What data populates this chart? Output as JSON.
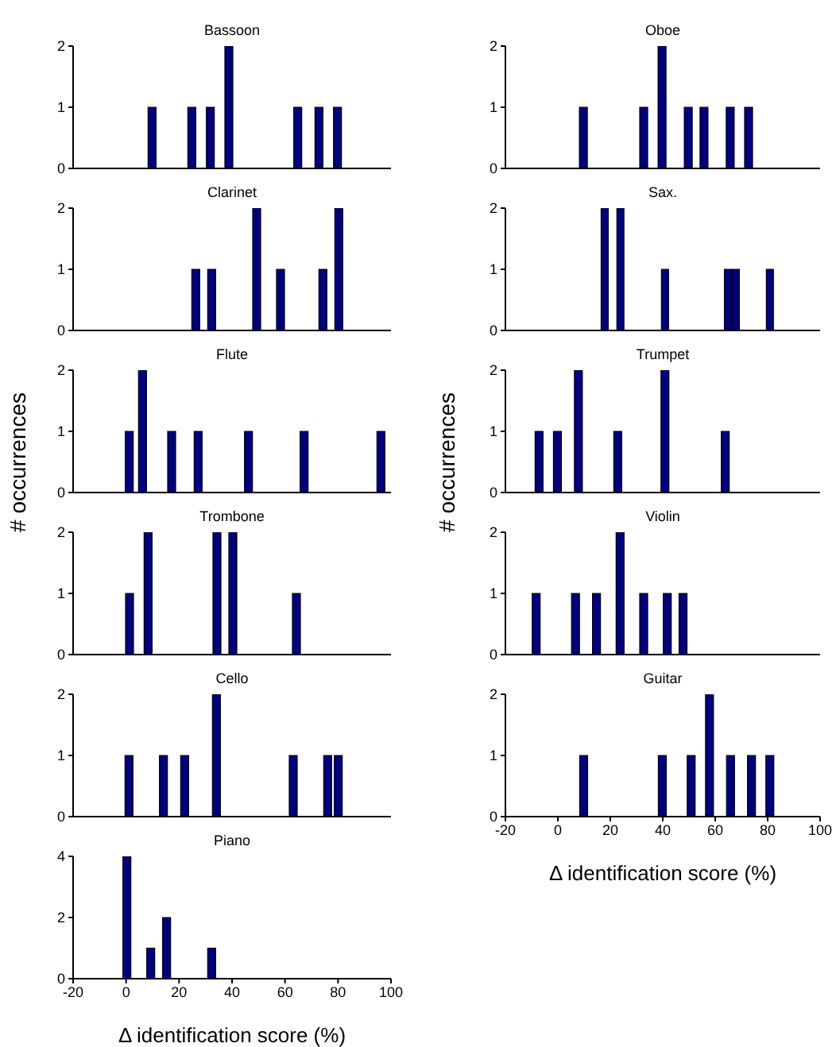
{
  "chart_data": [
    {
      "type": "bar",
      "title": "Bassoon",
      "x": [
        10,
        25,
        32,
        39,
        65,
        73,
        80
      ],
      "values": [
        1,
        1,
        1,
        2,
        1,
        1,
        1
      ],
      "color": "#000080",
      "xlim": [
        -20,
        100
      ],
      "xticks": [
        -20,
        0,
        20,
        40,
        60,
        80,
        100
      ],
      "ylim": [
        0,
        2
      ],
      "yticks": [
        0,
        1,
        2
      ],
      "tick_labels": "y"
    },
    {
      "type": "bar",
      "title": "Clarinet",
      "x": [
        26,
        32,
        49,
        58,
        74,
        80
      ],
      "values": [
        1,
        1,
        2,
        1,
        1,
        2
      ],
      "color": "#000080",
      "xlim": [
        -20,
        100
      ],
      "xticks": [
        -20,
        0,
        20,
        40,
        60,
        80,
        100
      ],
      "ylim": [
        0,
        2
      ],
      "yticks": [
        0,
        1,
        2
      ],
      "tick_labels": "y"
    },
    {
      "type": "bar",
      "title": "Flute",
      "ylabel": "# occurrences",
      "x": [
        1,
        6,
        17,
        27,
        46,
        67,
        96
      ],
      "values": [
        1,
        2,
        1,
        1,
        1,
        1,
        1
      ],
      "color": "#000080",
      "xlim": [
        -20,
        100
      ],
      "xticks": [
        -20,
        0,
        20,
        40,
        60,
        80,
        100
      ],
      "ylim": [
        0,
        2
      ],
      "yticks": [
        0,
        1,
        2
      ],
      "tick_labels": "y"
    },
    {
      "type": "bar",
      "title": "Trombone",
      "x": [
        1,
        8,
        34,
        40,
        64
      ],
      "values": [
        1,
        2,
        2,
        2,
        1
      ],
      "color": "#000080",
      "xlim": [
        -20,
        100
      ],
      "xticks": [
        -20,
        0,
        20,
        40,
        60,
        80,
        100
      ],
      "ylim": [
        0,
        2
      ],
      "yticks": [
        0,
        1,
        2
      ],
      "tick_labels": "y"
    },
    {
      "type": "bar",
      "title": "Cello",
      "x": [
        1,
        14,
        22,
        34,
        63,
        76,
        80
      ],
      "values": [
        1,
        1,
        1,
        2,
        1,
        1,
        1
      ],
      "color": "#000080",
      "xlim": [
        -20,
        100
      ],
      "xticks": [
        -20,
        0,
        20,
        40,
        60,
        80,
        100
      ],
      "ylim": [
        0,
        2
      ],
      "yticks": [
        0,
        1,
        2
      ],
      "tick_labels": "y"
    },
    {
      "type": "bar",
      "title": "Piano",
      "xlabel": "Δ identification score (%)",
      "x": [
        0,
        9,
        15,
        32
      ],
      "values": [
        4,
        1,
        2,
        1
      ],
      "color": "#000080",
      "xlim": [
        -20,
        100
      ],
      "xticks": [
        -20,
        0,
        20,
        40,
        60,
        80,
        100
      ],
      "ylim": [
        0,
        4
      ],
      "yticks": [
        0,
        2,
        4
      ]
    },
    {
      "type": "bar",
      "title": "Oboe",
      "x": [
        10,
        33,
        40,
        50,
        56,
        66,
        73
      ],
      "values": [
        1,
        1,
        2,
        1,
        1,
        1,
        1
      ],
      "color": "#000080",
      "xlim": [
        -20,
        100
      ],
      "xticks": [
        -20,
        0,
        20,
        40,
        60,
        80,
        100
      ],
      "ylim": [
        0,
        2
      ],
      "yticks": [
        0,
        1,
        2
      ],
      "tick_labels": "y"
    },
    {
      "type": "bar",
      "title": "Sax.",
      "x": [
        18,
        24,
        41,
        65,
        68,
        81
      ],
      "values": [
        2,
        2,
        1,
        1,
        1,
        1
      ],
      "color": "#000080",
      "xlim": [
        -20,
        100
      ],
      "xticks": [
        -20,
        0,
        20,
        40,
        60,
        80,
        100
      ],
      "ylim": [
        0,
        2
      ],
      "yticks": [
        0,
        1,
        2
      ],
      "tick_labels": "y"
    },
    {
      "type": "bar",
      "title": "Trumpet",
      "ylabel": "# occurrences",
      "x": [
        -7,
        0,
        8,
        23,
        41,
        64
      ],
      "values": [
        1,
        1,
        2,
        1,
        2,
        1
      ],
      "color": "#000080",
      "xlim": [
        -20,
        100
      ],
      "xticks": [
        -20,
        0,
        20,
        40,
        60,
        80,
        100
      ],
      "ylim": [
        0,
        2
      ],
      "yticks": [
        0,
        1,
        2
      ],
      "tick_labels": "y"
    },
    {
      "type": "bar",
      "title": "Violin",
      "x": [
        -8,
        7,
        15,
        24,
        33,
        42,
        48
      ],
      "values": [
        1,
        1,
        1,
        2,
        1,
        1,
        1
      ],
      "color": "#000080",
      "xlim": [
        -20,
        100
      ],
      "xticks": [
        -20,
        0,
        20,
        40,
        60,
        80,
        100
      ],
      "ylim": [
        0,
        2
      ],
      "yticks": [
        0,
        1,
        2
      ],
      "tick_labels": "y"
    },
    {
      "type": "bar",
      "title": "Guitar",
      "xlabel": "Δ identification score (%)",
      "x": [
        10,
        40,
        51,
        58,
        66,
        74,
        81
      ],
      "values": [
        1,
        1,
        1,
        2,
        1,
        1,
        1
      ],
      "color": "#000080",
      "xlim": [
        -20,
        100
      ],
      "xticks": [
        -20,
        0,
        20,
        40,
        60,
        80,
        100
      ],
      "ylim": [
        0,
        2
      ],
      "yticks": [
        0,
        1,
        2
      ]
    }
  ]
}
